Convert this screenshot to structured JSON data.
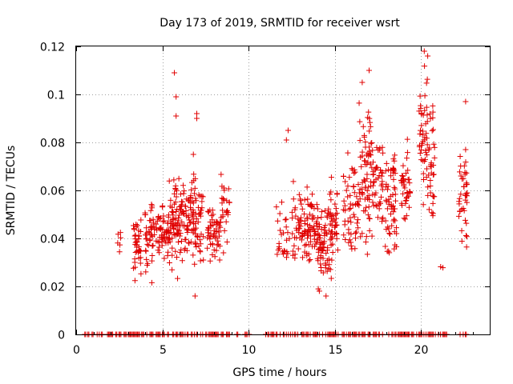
{
  "chart_data": {
    "type": "scatter",
    "title": "Day 173 of 2019, SRMTID for receiver wsrt",
    "xlabel": "GPS time / hours",
    "ylabel": "SRMTID / TECUs",
    "xlim": [
      0,
      24
    ],
    "ylim": [
      0,
      0.12
    ],
    "xticks": [
      0,
      5,
      10,
      15,
      20
    ],
    "xtick_labels": [
      "0",
      "5",
      "10",
      "15",
      "20"
    ],
    "yticks": [
      0,
      0.02,
      0.04,
      0.06,
      0.08,
      0.1,
      0.12
    ],
    "ytick_labels": [
      "0",
      "0.02",
      "0.04",
      "0.06",
      "0.08",
      "0.1",
      "0.12"
    ],
    "grid": true,
    "marker": "+",
    "color": "#e00000",
    "series": [
      {
        "name": "SRMTID",
        "clusters": [
          {
            "x_range": [
              2.4,
              2.6
            ],
            "y_range": [
              0.033,
              0.045
            ],
            "count": 6
          },
          {
            "x_range": [
              3.3,
              3.8
            ],
            "y_range": [
              0.017,
              0.055
            ],
            "count": 40
          },
          {
            "x_range": [
              4.0,
              4.6
            ],
            "y_range": [
              0.02,
              0.065
            ],
            "count": 45
          },
          {
            "x_range": [
              4.6,
              5.4
            ],
            "y_range": [
              0.025,
              0.06
            ],
            "count": 55
          },
          {
            "x_range": [
              5.4,
              6.0
            ],
            "y_range": [
              0.019,
              0.075
            ],
            "count": 60
          },
          {
            "x_range": [
              6.0,
              6.8
            ],
            "y_range": [
              0.025,
              0.07
            ],
            "count": 70
          },
          {
            "x_range": [
              6.8,
              7.4
            ],
            "y_range": [
              0.016,
              0.08
            ],
            "count": 50
          },
          {
            "x_range": [
              7.6,
              8.4
            ],
            "y_range": [
              0.025,
              0.06
            ],
            "count": 55
          },
          {
            "x_range": [
              8.4,
              8.9
            ],
            "y_range": [
              0.026,
              0.072
            ],
            "count": 25
          },
          {
            "x_range": [
              11.6,
              12.4
            ],
            "y_range": [
              0.02,
              0.06
            ],
            "count": 25
          },
          {
            "x_range": [
              12.5,
              13.2
            ],
            "y_range": [
              0.026,
              0.07
            ],
            "count": 40
          },
          {
            "x_range": [
              13.2,
              14.0
            ],
            "y_range": [
              0.022,
              0.065
            ],
            "count": 65
          },
          {
            "x_range": [
              14.0,
              14.6
            ],
            "y_range": [
              0.016,
              0.06
            ],
            "count": 60
          },
          {
            "x_range": [
              14.6,
              15.2
            ],
            "y_range": [
              0.02,
              0.07
            ],
            "count": 50
          },
          {
            "x_range": [
              15.5,
              16.4
            ],
            "y_range": [
              0.025,
              0.08
            ],
            "count": 55
          },
          {
            "x_range": [
              16.4,
              17.2
            ],
            "y_range": [
              0.025,
              0.11
            ],
            "count": 75
          },
          {
            "x_range": [
              17.2,
              17.8
            ],
            "y_range": [
              0.035,
              0.09
            ],
            "count": 45
          },
          {
            "x_range": [
              17.9,
              18.6
            ],
            "y_range": [
              0.02,
              0.085
            ],
            "count": 60
          },
          {
            "x_range": [
              18.8,
              19.4
            ],
            "y_range": [
              0.035,
              0.085
            ],
            "count": 40
          },
          {
            "x_range": [
              19.9,
              20.4
            ],
            "y_range": [
              0.045,
              0.119
            ],
            "count": 45
          },
          {
            "x_range": [
              20.4,
              20.8
            ],
            "y_range": [
              0.026,
              0.116
            ],
            "count": 35
          },
          {
            "x_range": [
              21.1,
              21.3
            ],
            "y_range": [
              0.025,
              0.03
            ],
            "count": 2
          },
          {
            "x_range": [
              22.2,
              22.7
            ],
            "y_range": [
              0.024,
              0.097
            ],
            "count": 40
          }
        ],
        "outliers": [
          {
            "x": 5.7,
            "y": 0.109
          },
          {
            "x": 5.8,
            "y": 0.099
          },
          {
            "x": 5.8,
            "y": 0.091
          },
          {
            "x": 7.0,
            "y": 0.092
          },
          {
            "x": 7.0,
            "y": 0.09
          },
          {
            "x": 12.2,
            "y": 0.081
          },
          {
            "x": 12.3,
            "y": 0.085
          },
          {
            "x": 17.0,
            "y": 0.11
          },
          {
            "x": 16.6,
            "y": 0.105
          },
          {
            "x": 20.2,
            "y": 0.118
          },
          {
            "x": 20.4,
            "y": 0.116
          },
          {
            "x": 22.6,
            "y": 0.097
          },
          {
            "x": 22.6,
            "y": 0.077
          },
          {
            "x": 6.9,
            "y": 0.016
          },
          {
            "x": 14.5,
            "y": 0.016
          }
        ],
        "zero_rug_x_range": [
          0.5,
          22.8
        ],
        "zero_rug_gaps": [
          [
            8.9,
            9.3
          ],
          [
            9.4,
            9.6
          ],
          [
            10.1,
            10.9
          ],
          [
            21.6,
            22.1
          ],
          [
            22.8,
            24
          ]
        ]
      }
    ]
  }
}
